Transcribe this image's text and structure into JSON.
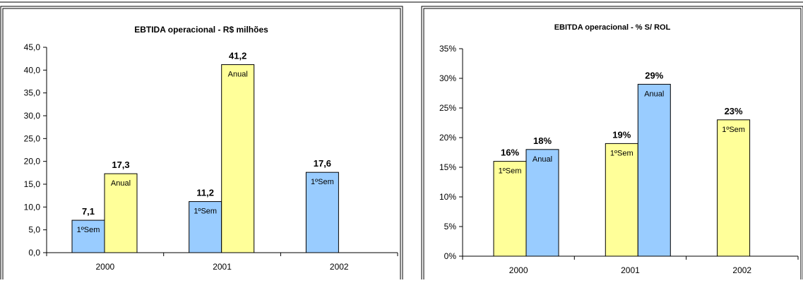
{
  "colors": {
    "blue": "#99CCFF",
    "yellow": "#FFFF99",
    "stroke": "#000000",
    "background": "#FFFFFF"
  },
  "chart_data": [
    {
      "type": "bar",
      "title": "EBTIDA operacional -  R$ milhões",
      "categories": [
        "2000",
        "2001",
        "2002"
      ],
      "ylim": [
        0,
        45
      ],
      "yticks": [
        "0,0",
        "5,0",
        "10,0",
        "15,0",
        "20,0",
        "25,0",
        "30,0",
        "35,0",
        "40,0",
        "45,0"
      ],
      "grid": false,
      "legend": "none",
      "bars": [
        {
          "category": "2000",
          "value": 7.1,
          "value_label": "7,1",
          "inner_label": "1ºSem",
          "color": "blue"
        },
        {
          "category": "2000",
          "value": 17.3,
          "value_label": "17,3",
          "inner_label": "Anual",
          "color": "yellow"
        },
        {
          "category": "2001",
          "value": 11.2,
          "value_label": "11,2",
          "inner_label": "1ºSem",
          "color": "blue"
        },
        {
          "category": "2001",
          "value": 41.2,
          "value_label": "41,2",
          "inner_label": "Anual",
          "color": "yellow"
        },
        {
          "category": "2002",
          "value": 17.6,
          "value_label": "17,6",
          "inner_label": "1ºSem",
          "color": "blue"
        }
      ]
    },
    {
      "type": "bar",
      "title": "EBITDA operacional -   % S/ ROL",
      "categories": [
        "2000",
        "2001",
        "2002"
      ],
      "ylim": [
        0,
        35
      ],
      "yticks": [
        "0%",
        "5%",
        "10%",
        "15%",
        "20%",
        "25%",
        "30%",
        "35%"
      ],
      "grid": false,
      "legend": "none",
      "bars": [
        {
          "category": "2000",
          "value": 16,
          "value_label": "16%",
          "inner_label": "1ºSem",
          "color": "yellow"
        },
        {
          "category": "2000",
          "value": 18,
          "value_label": "18%",
          "inner_label": "Anual",
          "color": "blue"
        },
        {
          "category": "2001",
          "value": 19,
          "value_label": "19%",
          "inner_label": "1ºSem",
          "color": "yellow"
        },
        {
          "category": "2001",
          "value": 29,
          "value_label": "29%",
          "inner_label": "Anual",
          "color": "blue"
        },
        {
          "category": "2002",
          "value": 23,
          "value_label": "23%",
          "inner_label": "1ºSem",
          "color": "yellow"
        }
      ]
    }
  ]
}
